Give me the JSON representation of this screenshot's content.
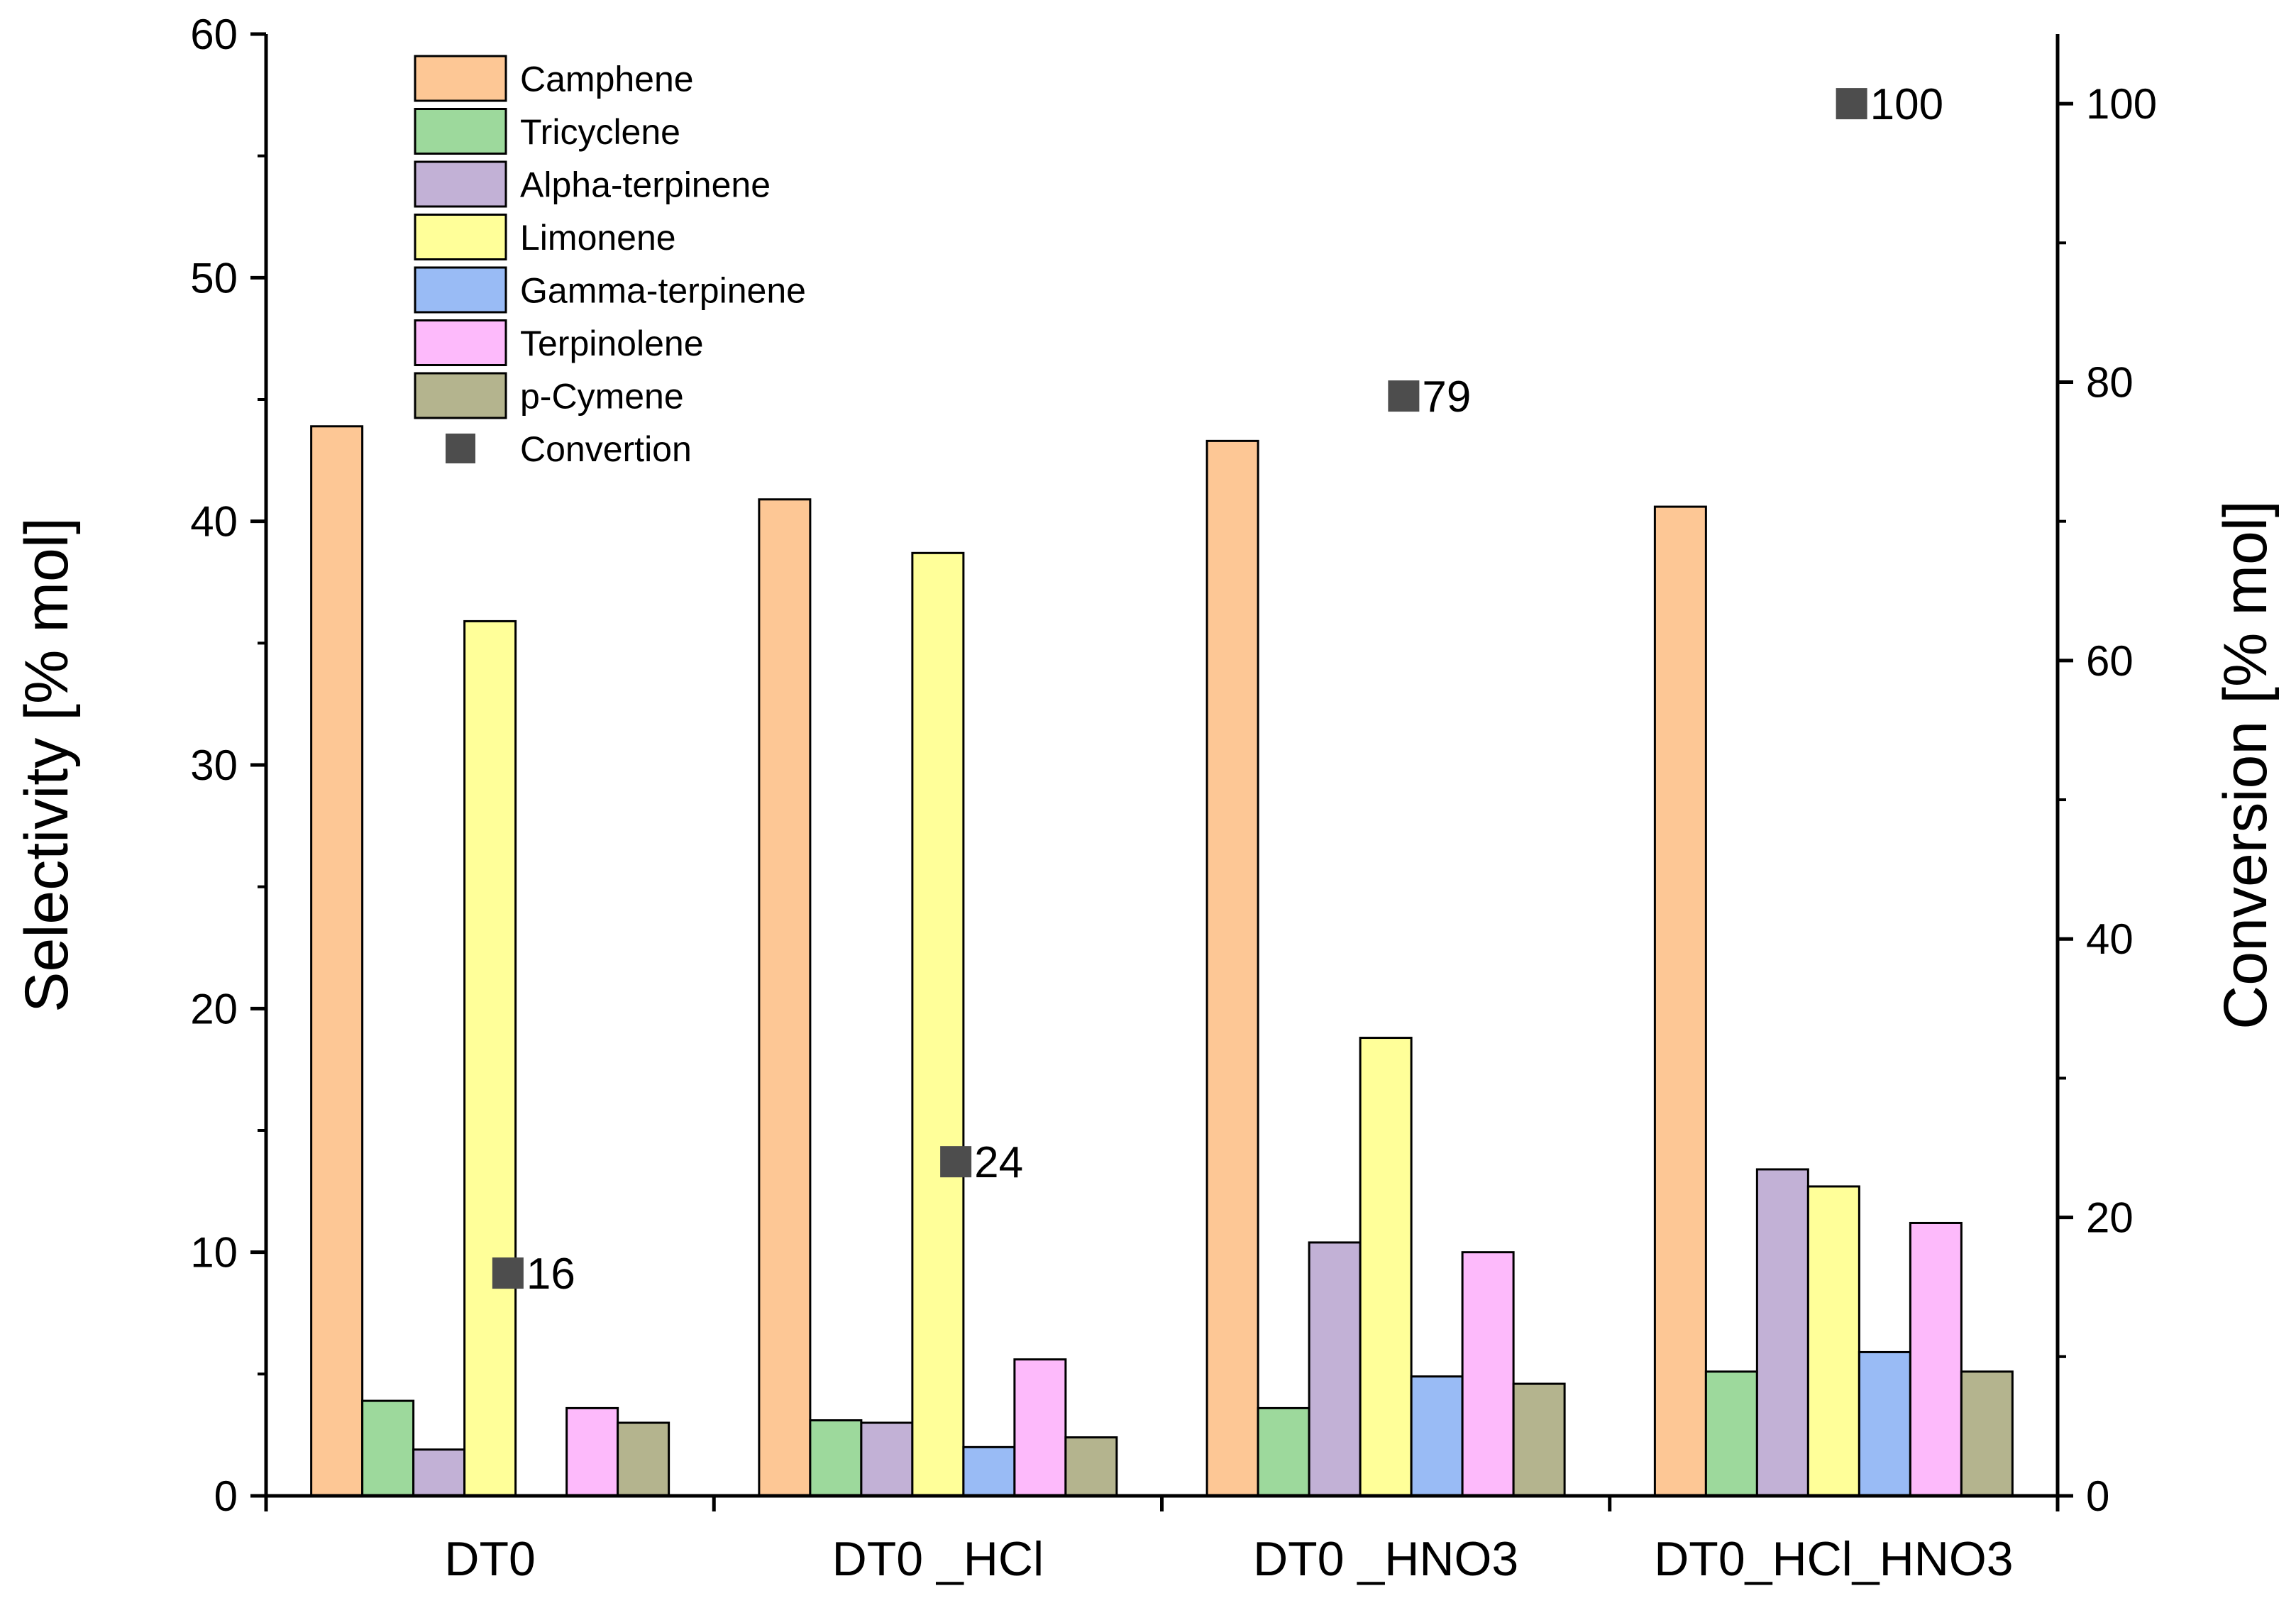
{
  "chart_data": {
    "type": "bar",
    "title": "",
    "categories": [
      "DT0",
      "DT0 _HCl",
      "DT0 _HNO3",
      "DT0_HCl_HNO3"
    ],
    "xlabel": "",
    "ylabel": "Selectivity [% mol]",
    "ylabel_right": "Conversion [% mol]",
    "ylim": [
      0,
      60
    ],
    "ylim_right": [
      0,
      105
    ],
    "yticks": [
      0,
      10,
      20,
      30,
      40,
      50,
      60
    ],
    "yticks_right": [
      0,
      20,
      40,
      60,
      80,
      100
    ],
    "grid": false,
    "legend_position": "top-left",
    "series": [
      {
        "name": "Camphene",
        "color": "#FDC795",
        "values": [
          43.9,
          40.9,
          43.3,
          40.6
        ]
      },
      {
        "name": "Tricyclene",
        "color": "#9DD99C",
        "values": [
          3.9,
          3.1,
          3.6,
          5.1
        ]
      },
      {
        "name": "Alpha-terpinene",
        "color": "#C2B1D6",
        "values": [
          1.9,
          3.0,
          10.4,
          13.4
        ]
      },
      {
        "name": "Limonene",
        "color": "#FFFF99",
        "values": [
          35.9,
          38.7,
          18.8,
          12.7
        ]
      },
      {
        "name": "Gamma-terpinene",
        "color": "#99BBF5",
        "values": [
          0,
          2.0,
          4.9,
          5.9
        ]
      },
      {
        "name": "Terpinolene",
        "color": "#FDBAFB",
        "values": [
          3.6,
          5.6,
          10.0,
          11.2
        ]
      },
      {
        "name": "p-Cymene",
        "color": "#B4B48E",
        "values": [
          3.0,
          2.4,
          4.6,
          5.1
        ]
      }
    ],
    "conversion": {
      "name": "Convertion",
      "color": "#4D4D4D",
      "values": [
        16,
        24,
        79,
        100
      ],
      "labels": [
        "16",
        "24",
        "79",
        "100"
      ]
    }
  }
}
